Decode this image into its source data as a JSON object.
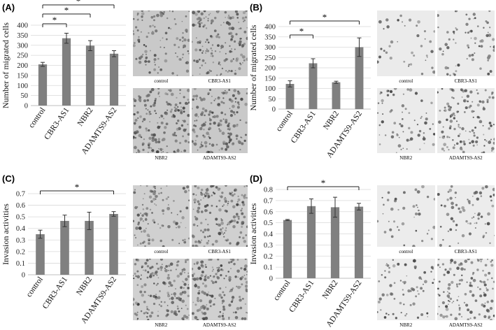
{
  "panels": [
    {
      "label": "(A)",
      "micro_captions": [
        "control",
        "CBR3-AS1",
        "NBR2",
        "ADAMTS9-AS2"
      ]
    },
    {
      "label": "(B)",
      "micro_captions": [
        "control",
        "CBR3-AS1",
        "NBR2",
        "ADAMTS9-AS2"
      ]
    },
    {
      "label": "(C)",
      "micro_captions": [
        "control",
        "CBR3-AS1",
        "NBR2",
        "ADAMTS9-AS2"
      ]
    },
    {
      "label": "(D)",
      "micro_captions": [
        "control",
        "CBR3-AS1",
        "NBR2",
        "ADAMTS9-AS2"
      ]
    }
  ],
  "chart_data": [
    {
      "type": "bar",
      "categories": [
        "control",
        "CBR3-AS1",
        "NBR2",
        "ADAMTS9-AS2"
      ],
      "values": [
        205,
        335,
        298,
        258
      ],
      "errors": [
        10,
        25,
        25,
        15
      ],
      "ylabel": "Number of migrated cells",
      "ylim": [
        0,
        400
      ],
      "yticks": [
        0,
        50,
        100,
        150,
        200,
        250,
        300,
        350,
        400
      ],
      "grid": true,
      "color": "#808080",
      "significance": [
        {
          "from": 0,
          "to": 1,
          "label": "*"
        },
        {
          "from": 0,
          "to": 2,
          "label": "*"
        },
        {
          "from": 0,
          "to": 3,
          "label": "*"
        }
      ]
    },
    {
      "type": "bar",
      "categories": [
        "control",
        "CBR3-AS1",
        "NBR2",
        "ADAMTS9-AS2"
      ],
      "values": [
        122,
        222,
        130,
        300
      ],
      "errors": [
        15,
        22,
        5,
        45
      ],
      "ylabel": "Number of migrated cells",
      "ylim": [
        0,
        400
      ],
      "yticks": [
        0,
        50,
        100,
        150,
        200,
        250,
        300,
        350,
        400
      ],
      "grid": true,
      "color": "#808080",
      "significance": [
        {
          "from": 0,
          "to": 1,
          "label": "*"
        },
        {
          "from": 0,
          "to": 3,
          "label": "*"
        }
      ]
    },
    {
      "type": "bar",
      "categories": [
        "control",
        "CBR3-AS1",
        "NBR2",
        "ADAMTS9-AS2"
      ],
      "values": [
        0.35,
        0.465,
        0.465,
        0.525
      ],
      "errors": [
        0.035,
        0.05,
        0.075,
        0.02
      ],
      "ylabel": "Invasion activities",
      "ylim": [
        0,
        0.7
      ],
      "yticks": [
        0,
        0.1,
        0.2,
        0.3,
        0.4,
        0.5,
        0.6,
        0.7
      ],
      "grid": true,
      "color": "#808080",
      "significance": [
        {
          "from": 0,
          "to": 3,
          "label": "*"
        }
      ]
    },
    {
      "type": "bar",
      "categories": [
        "control",
        "CBR3-AS1",
        "NBR2",
        "ADAMTS9-AS2"
      ],
      "values": [
        0.525,
        0.65,
        0.64,
        0.645
      ],
      "errors": [
        0.005,
        0.065,
        0.09,
        0.03
      ],
      "ylabel": "Invasion activities",
      "ylim": [
        0,
        0.8
      ],
      "yticks": [
        0,
        0.1,
        0.2,
        0.3,
        0.4,
        0.5,
        0.6,
        0.7,
        0.8
      ],
      "grid": true,
      "color": "#808080",
      "significance": [
        {
          "from": 0,
          "to": 3,
          "label": "*"
        }
      ]
    }
  ]
}
